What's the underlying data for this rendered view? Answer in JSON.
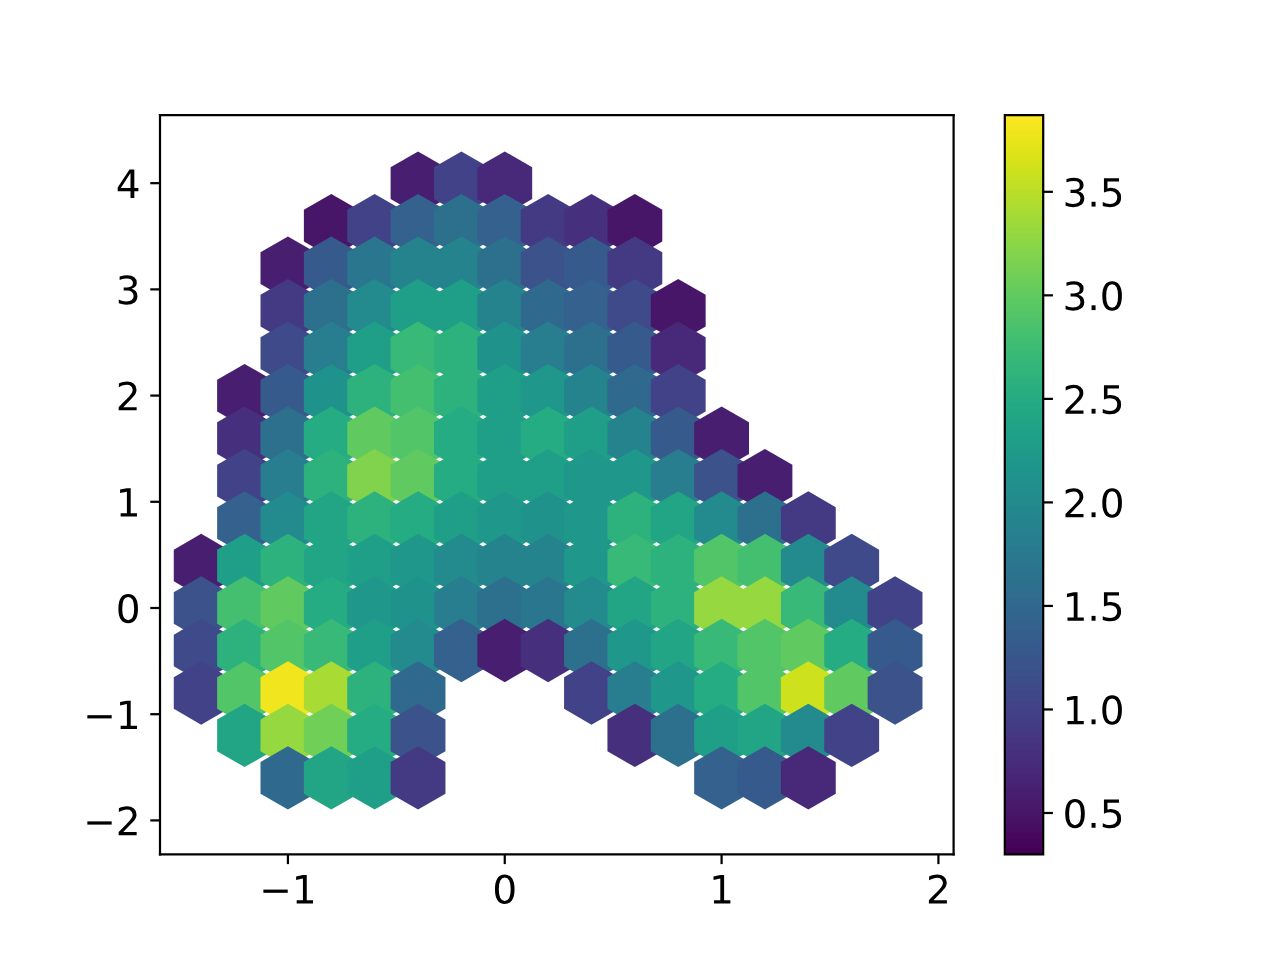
{
  "chart_data": {
    "type": "scatter",
    "x": [
      -0.4,
      -0.2,
      0.0,
      -0.8,
      -0.6,
      -0.4,
      -0.2,
      0.0,
      0.2,
      0.4,
      0.6,
      -1.0,
      -0.8,
      -0.6,
      -0.4,
      -0.2,
      0.0,
      0.2,
      0.4,
      0.6,
      -1.0,
      -0.8,
      -0.6,
      -0.4,
      -0.2,
      0.0,
      0.2,
      0.4,
      0.6,
      0.8,
      -1.0,
      -0.8,
      -0.6,
      -0.4,
      -0.2,
      0.0,
      0.2,
      0.4,
      0.6,
      0.8,
      -1.2,
      -1.0,
      -0.8,
      -0.6,
      -0.4,
      -0.2,
      0.0,
      0.2,
      0.4,
      0.6,
      0.8,
      -1.2,
      -1.0,
      -0.8,
      -0.6,
      -0.4,
      -0.2,
      0.0,
      0.2,
      0.4,
      0.6,
      0.8,
      1.0,
      -1.2,
      -1.0,
      -0.8,
      -0.6,
      -0.4,
      -0.2,
      0.0,
      0.2,
      0.4,
      0.6,
      0.8,
      1.0,
      1.2,
      -1.2,
      -1.0,
      -0.8,
      -0.6,
      -0.4,
      -0.2,
      0.0,
      0.2,
      0.4,
      0.6,
      0.8,
      1.0,
      1.2,
      1.4,
      -1.4,
      -1.2,
      -1.0,
      -0.8,
      -0.6,
      -0.4,
      -0.2,
      0.0,
      0.2,
      0.4,
      0.6,
      0.8,
      1.0,
      1.2,
      1.4,
      1.6,
      -1.4,
      -1.2,
      -1.0,
      -0.8,
      -0.6,
      -0.4,
      -0.2,
      0.0,
      0.2,
      0.4,
      0.6,
      0.8,
      1.0,
      1.2,
      1.4,
      1.6,
      1.8,
      -1.4,
      -1.2,
      -1.0,
      -0.8,
      -0.6,
      -0.4,
      -0.2,
      0.0,
      0.2,
      0.4,
      0.6,
      0.8,
      1.0,
      1.2,
      1.4,
      1.6,
      1.8,
      -1.4,
      -1.2,
      -1.0,
      -0.8,
      -0.6,
      -0.4,
      0.4,
      0.6,
      0.8,
      1.0,
      1.2,
      1.4,
      1.6,
      1.8,
      -1.2,
      -1.0,
      -0.8,
      -0.6,
      -0.4,
      0.6,
      0.8,
      1.0,
      1.2,
      1.4,
      1.6,
      -1.0,
      -0.8,
      -0.6,
      -0.4,
      1.0,
      1.2,
      1.4
    ],
    "values": [
      4.0,
      4.0,
      4.0,
      3.6,
      3.6,
      3.6,
      3.6,
      3.6,
      3.6,
      3.6,
      3.6,
      3.2,
      3.2,
      3.2,
      3.2,
      3.2,
      3.2,
      3.2,
      3.2,
      3.2,
      2.8,
      2.8,
      2.8,
      2.8,
      2.8,
      2.8,
      2.8,
      2.8,
      2.8,
      2.8,
      2.4,
      2.4,
      2.4,
      2.4,
      2.4,
      2.4,
      2.4,
      2.4,
      2.4,
      2.4,
      2.0,
      2.0,
      2.0,
      2.0,
      2.0,
      2.0,
      2.0,
      2.0,
      2.0,
      2.0,
      2.0,
      1.6,
      1.6,
      1.6,
      1.6,
      1.6,
      1.6,
      1.6,
      1.6,
      1.6,
      1.6,
      1.6,
      1.6,
      1.2,
      1.2,
      1.2,
      1.2,
      1.2,
      1.2,
      1.2,
      1.2,
      1.2,
      1.2,
      1.2,
      1.2,
      1.2,
      0.8,
      0.8,
      0.8,
      0.8,
      0.8,
      0.8,
      0.8,
      0.8,
      0.8,
      0.8,
      0.8,
      0.8,
      0.8,
      0.8,
      0.4,
      0.4,
      0.4,
      0.4,
      0.4,
      0.4,
      0.4,
      0.4,
      0.4,
      0.4,
      0.4,
      0.4,
      0.4,
      0.4,
      0.4,
      0.4,
      0.0,
      0.0,
      0.0,
      0.0,
      0.0,
      0.0,
      0.0,
      0.0,
      0.0,
      0.0,
      0.0,
      0.0,
      0.0,
      0.0,
      0.0,
      0.0,
      0.0,
      -0.4,
      -0.4,
      -0.4,
      -0.4,
      -0.4,
      -0.4,
      -0.4,
      -0.4,
      -0.4,
      -0.4,
      -0.4,
      -0.4,
      -0.4,
      -0.4,
      -0.4,
      -0.4,
      -0.4,
      -0.8,
      -0.8,
      -0.8,
      -0.8,
      -0.8,
      -0.8,
      -0.8,
      -0.8,
      -0.8,
      -0.8,
      -0.8,
      -0.8,
      -0.8,
      -0.8,
      -1.2,
      -1.2,
      -1.2,
      -1.2,
      -1.2,
      -1.2,
      -1.2,
      -1.2,
      -1.2,
      -1.2,
      -1.2,
      -1.6,
      -1.6,
      -1.6,
      -1.6,
      -1.6,
      -1.6,
      -1.6
    ],
    "cvalues": [
      0.6,
      1.0,
      0.7,
      0.5,
      1.0,
      1.4,
      1.6,
      1.4,
      0.9,
      0.8,
      0.5,
      0.6,
      1.3,
      1.7,
      1.9,
      1.9,
      1.6,
      1.2,
      1.3,
      0.9,
      0.9,
      1.6,
      2.0,
      2.3,
      2.3,
      1.9,
      1.5,
      1.4,
      1.1,
      0.5,
      1.1,
      1.8,
      2.3,
      2.7,
      2.6,
      2.1,
      1.8,
      1.6,
      1.3,
      0.7,
      0.6,
      1.3,
      2.1,
      2.6,
      2.8,
      2.6,
      2.3,
      2.2,
      1.9,
      1.5,
      1.0,
      0.8,
      1.6,
      2.5,
      3.0,
      2.9,
      2.5,
      2.3,
      2.5,
      2.3,
      1.9,
      1.3,
      0.6,
      1.0,
      1.8,
      2.6,
      3.2,
      3.0,
      2.5,
      2.3,
      2.3,
      2.2,
      2.2,
      1.8,
      1.2,
      0.6,
      1.4,
      2.0,
      2.4,
      2.6,
      2.5,
      2.3,
      2.2,
      2.1,
      2.2,
      2.6,
      2.4,
      2.0,
      1.6,
      0.9,
      0.6,
      2.3,
      2.6,
      2.4,
      2.3,
      2.2,
      2.0,
      1.9,
      1.9,
      2.2,
      2.7,
      2.6,
      2.9,
      2.8,
      2.0,
      1.1,
      1.2,
      2.8,
      3.0,
      2.5,
      2.2,
      2.1,
      1.8,
      1.6,
      1.7,
      2.0,
      2.4,
      2.6,
      3.3,
      3.3,
      2.7,
      2.0,
      1.0,
      1.1,
      2.6,
      2.9,
      2.7,
      2.3,
      2.0,
      1.4,
      0.6,
      0.8,
      1.6,
      2.2,
      2.4,
      2.7,
      2.9,
      3.0,
      2.5,
      1.3,
      1.0,
      2.9,
      3.8,
      3.4,
      2.6,
      1.5,
      1.0,
      1.8,
      2.2,
      2.5,
      2.9,
      3.6,
      3.0,
      1.2,
      2.4,
      3.3,
      3.1,
      2.5,
      1.2,
      0.8,
      1.6,
      2.3,
      2.4,
      2.0,
      1.0,
      1.5,
      2.4,
      2.3,
      0.9,
      1.4,
      1.3,
      0.7
    ],
    "xlim": [
      -1.59,
      2.07
    ],
    "ylim": [
      -2.32,
      4.64
    ],
    "xticks": [
      {
        "value": -1,
        "label": "−1"
      },
      0,
      1,
      2
    ],
    "yticks": [
      {
        "value": -2,
        "label": "−2"
      },
      {
        "value": -1,
        "label": "−1"
      },
      0,
      1,
      2,
      3,
      4
    ],
    "clim": [
      0.3,
      3.87
    ],
    "cticks": [
      0.5,
      {
        "value": 1,
        "label": "1.0"
      },
      1.5,
      {
        "value": 2,
        "label": "2.0"
      },
      2.5,
      {
        "value": 3,
        "label": "3.0"
      },
      3.5
    ]
  }
}
